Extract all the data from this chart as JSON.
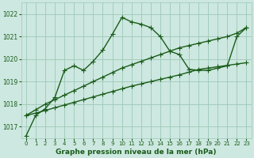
{
  "x": [
    0,
    1,
    2,
    3,
    4,
    5,
    6,
    7,
    8,
    9,
    10,
    11,
    12,
    13,
    14,
    15,
    16,
    17,
    18,
    19,
    20,
    21,
    22,
    23
  ],
  "y_main": [
    1016.6,
    1017.5,
    1017.8,
    1018.3,
    1019.5,
    1019.7,
    1019.5,
    1019.9,
    1020.4,
    1021.1,
    1021.85,
    1021.65,
    1021.55,
    1021.4,
    1021.0,
    1020.35,
    1020.2,
    1019.55,
    1019.5,
    1019.5,
    1019.6,
    1019.7,
    1021.0,
    1021.4
  ],
  "y_line1": [
    1017.5,
    1017.75,
    1018.0,
    1018.2,
    1018.4,
    1018.6,
    1018.8,
    1019.0,
    1019.2,
    1019.4,
    1019.6,
    1019.75,
    1019.9,
    1020.05,
    1020.2,
    1020.35,
    1020.5,
    1020.6,
    1020.7,
    1020.8,
    1020.9,
    1021.0,
    1021.15,
    1021.4
  ],
  "y_line2": [
    1017.5,
    1017.6,
    1017.72,
    1017.84,
    1017.96,
    1018.08,
    1018.2,
    1018.32,
    1018.44,
    1018.56,
    1018.68,
    1018.8,
    1018.9,
    1019.0,
    1019.1,
    1019.2,
    1019.3,
    1019.42,
    1019.54,
    1019.6,
    1019.66,
    1019.72,
    1019.78,
    1019.84
  ],
  "ylim": [
    1016.5,
    1022.5
  ],
  "yticks": [
    1017,
    1018,
    1019,
    1020,
    1021,
    1022
  ],
  "xlabel": "Graphe pression niveau de la mer (hPa)",
  "bg_color": "#cde8e0",
  "grid_color": "#9dc8b8",
  "line_color": "#1a5c1a",
  "marker": "+",
  "markersize": 4,
  "linewidth": 1.0
}
